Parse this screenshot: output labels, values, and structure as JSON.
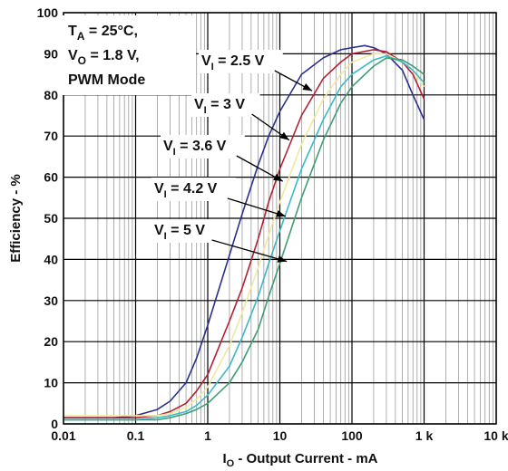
{
  "chart_data": {
    "type": "line",
    "xscale": "log",
    "xlim": [
      0.01,
      10000
    ],
    "ylim": [
      0,
      100
    ],
    "grid": true,
    "xlabel": {
      "main": "I",
      "sub": "O",
      "rest": " - Output Current - mA"
    },
    "ylabel": "Efficiency - %",
    "x_ticks": [
      {
        "v": 0.01,
        "label": "0.01"
      },
      {
        "v": 0.1,
        "label": "0.1"
      },
      {
        "v": 1,
        "label": "1"
      },
      {
        "v": 10,
        "label": "10"
      },
      {
        "v": 100,
        "label": "100"
      },
      {
        "v": 1000,
        "label": "1 k"
      },
      {
        "v": 10000,
        "label": "10 k"
      }
    ],
    "y_ticks": [
      {
        "v": 0,
        "label": "0"
      },
      {
        "v": 10,
        "label": "10"
      },
      {
        "v": 20,
        "label": "20"
      },
      {
        "v": 30,
        "label": "30"
      },
      {
        "v": 40,
        "label": "40"
      },
      {
        "v": 50,
        "label": "50"
      },
      {
        "v": 60,
        "label": "60"
      },
      {
        "v": 70,
        "label": "70"
      },
      {
        "v": 80,
        "label": "80"
      },
      {
        "v": 90,
        "label": "90"
      },
      {
        "v": 100,
        "label": "100"
      }
    ],
    "conditions": [
      {
        "main": "T",
        "sub": "A",
        "rest": " = 25°C,"
      },
      {
        "main": "V",
        "sub": "O",
        "rest": " = 1.8 V,"
      },
      {
        "main": "PWM Mode",
        "sub": "",
        "rest": ""
      }
    ],
    "series": [
      {
        "name": "V_I = 2.5 V",
        "label": {
          "main": "V",
          "sub": "I",
          "rest": " = 2.5 V"
        },
        "color": "#2b2f8f",
        "arrow_at": {
          "x": 28,
          "y": 81
        },
        "points": [
          [
            0.01,
            1.5
          ],
          [
            0.05,
            1.5
          ],
          [
            0.1,
            2
          ],
          [
            0.2,
            3.5
          ],
          [
            0.3,
            5.5
          ],
          [
            0.5,
            10
          ],
          [
            0.7,
            16
          ],
          [
            1,
            24
          ],
          [
            2,
            41
          ],
          [
            3,
            51
          ],
          [
            5,
            63
          ],
          [
            7,
            70
          ],
          [
            10,
            76
          ],
          [
            20,
            85
          ],
          [
            40,
            89
          ],
          [
            70,
            91
          ],
          [
            100,
            91.5
          ],
          [
            150,
            92
          ],
          [
            200,
            91.5
          ],
          [
            300,
            90
          ],
          [
            500,
            86
          ],
          [
            700,
            80
          ],
          [
            1000,
            74
          ]
        ]
      },
      {
        "name": "V_I = 3 V",
        "label": {
          "main": "V",
          "sub": "I",
          "rest": " = 3 V"
        },
        "color": "#b51f35",
        "arrow_at": {
          "x": 13.5,
          "y": 69
        },
        "points": [
          [
            0.01,
            1.5
          ],
          [
            0.1,
            1.5
          ],
          [
            0.2,
            2
          ],
          [
            0.3,
            3
          ],
          [
            0.5,
            5
          ],
          [
            0.7,
            8
          ],
          [
            1,
            12
          ],
          [
            2,
            25
          ],
          [
            3,
            33
          ],
          [
            5,
            45
          ],
          [
            7,
            54
          ],
          [
            10,
            62
          ],
          [
            20,
            75
          ],
          [
            40,
            84
          ],
          [
            70,
            88
          ],
          [
            100,
            90
          ],
          [
            200,
            91
          ],
          [
            300,
            90.5
          ],
          [
            500,
            88
          ],
          [
            700,
            85
          ],
          [
            1000,
            79
          ]
        ]
      },
      {
        "name": "V_I = 3.6 V",
        "label": {
          "main": "V",
          "sub": "I",
          "rest": " = 3.6 V"
        },
        "color": "#f0e9a0",
        "arrow_at": {
          "x": 11,
          "y": 59
        },
        "points": [
          [
            0.01,
            2
          ],
          [
            0.1,
            2
          ],
          [
            0.2,
            2
          ],
          [
            0.3,
            2.5
          ],
          [
            0.5,
            4
          ],
          [
            0.7,
            6
          ],
          [
            1,
            9
          ],
          [
            2,
            19
          ],
          [
            3,
            27
          ],
          [
            5,
            38
          ],
          [
            7,
            46
          ],
          [
            10,
            54
          ],
          [
            20,
            68
          ],
          [
            40,
            79
          ],
          [
            70,
            85
          ],
          [
            100,
            88
          ],
          [
            200,
            90
          ],
          [
            300,
            90
          ],
          [
            500,
            88
          ],
          [
            700,
            86
          ],
          [
            1000,
            82
          ]
        ]
      },
      {
        "name": "V_I = 4.2 V",
        "label": {
          "main": "V",
          "sub": "I",
          "rest": " = 4.2 V"
        },
        "color": "#3cb9c9",
        "arrow_at": {
          "x": 12,
          "y": 50.5
        },
        "points": [
          [
            0.01,
            1
          ],
          [
            0.1,
            1
          ],
          [
            0.2,
            1.5
          ],
          [
            0.3,
            2
          ],
          [
            0.5,
            3
          ],
          [
            0.7,
            4.5
          ],
          [
            1,
            7
          ],
          [
            2,
            14
          ],
          [
            3,
            21
          ],
          [
            5,
            31
          ],
          [
            7,
            39
          ],
          [
            10,
            47
          ],
          [
            20,
            62
          ],
          [
            40,
            74
          ],
          [
            70,
            82
          ],
          [
            100,
            85
          ],
          [
            200,
            88.5
          ],
          [
            300,
            89.5
          ],
          [
            500,
            88
          ],
          [
            700,
            86
          ],
          [
            1000,
            83
          ]
        ]
      },
      {
        "name": "V_I = 5 V",
        "label": {
          "main": "V",
          "sub": "I",
          "rest": " = 5 V"
        },
        "color": "#3e9e74",
        "arrow_at": {
          "x": 12.5,
          "y": 39.5
        },
        "points": [
          [
            0.01,
            1
          ],
          [
            0.1,
            1
          ],
          [
            0.2,
            1
          ],
          [
            0.3,
            1.5
          ],
          [
            0.5,
            2.5
          ],
          [
            0.7,
            3.5
          ],
          [
            1,
            5
          ],
          [
            2,
            10
          ],
          [
            3,
            15
          ],
          [
            5,
            23
          ],
          [
            7,
            31
          ],
          [
            10,
            39
          ],
          [
            20,
            55
          ],
          [
            40,
            69
          ],
          [
            70,
            78
          ],
          [
            100,
            82
          ],
          [
            200,
            87
          ],
          [
            300,
            89
          ],
          [
            500,
            88.5
          ],
          [
            700,
            87
          ],
          [
            1000,
            85
          ]
        ]
      }
    ]
  }
}
